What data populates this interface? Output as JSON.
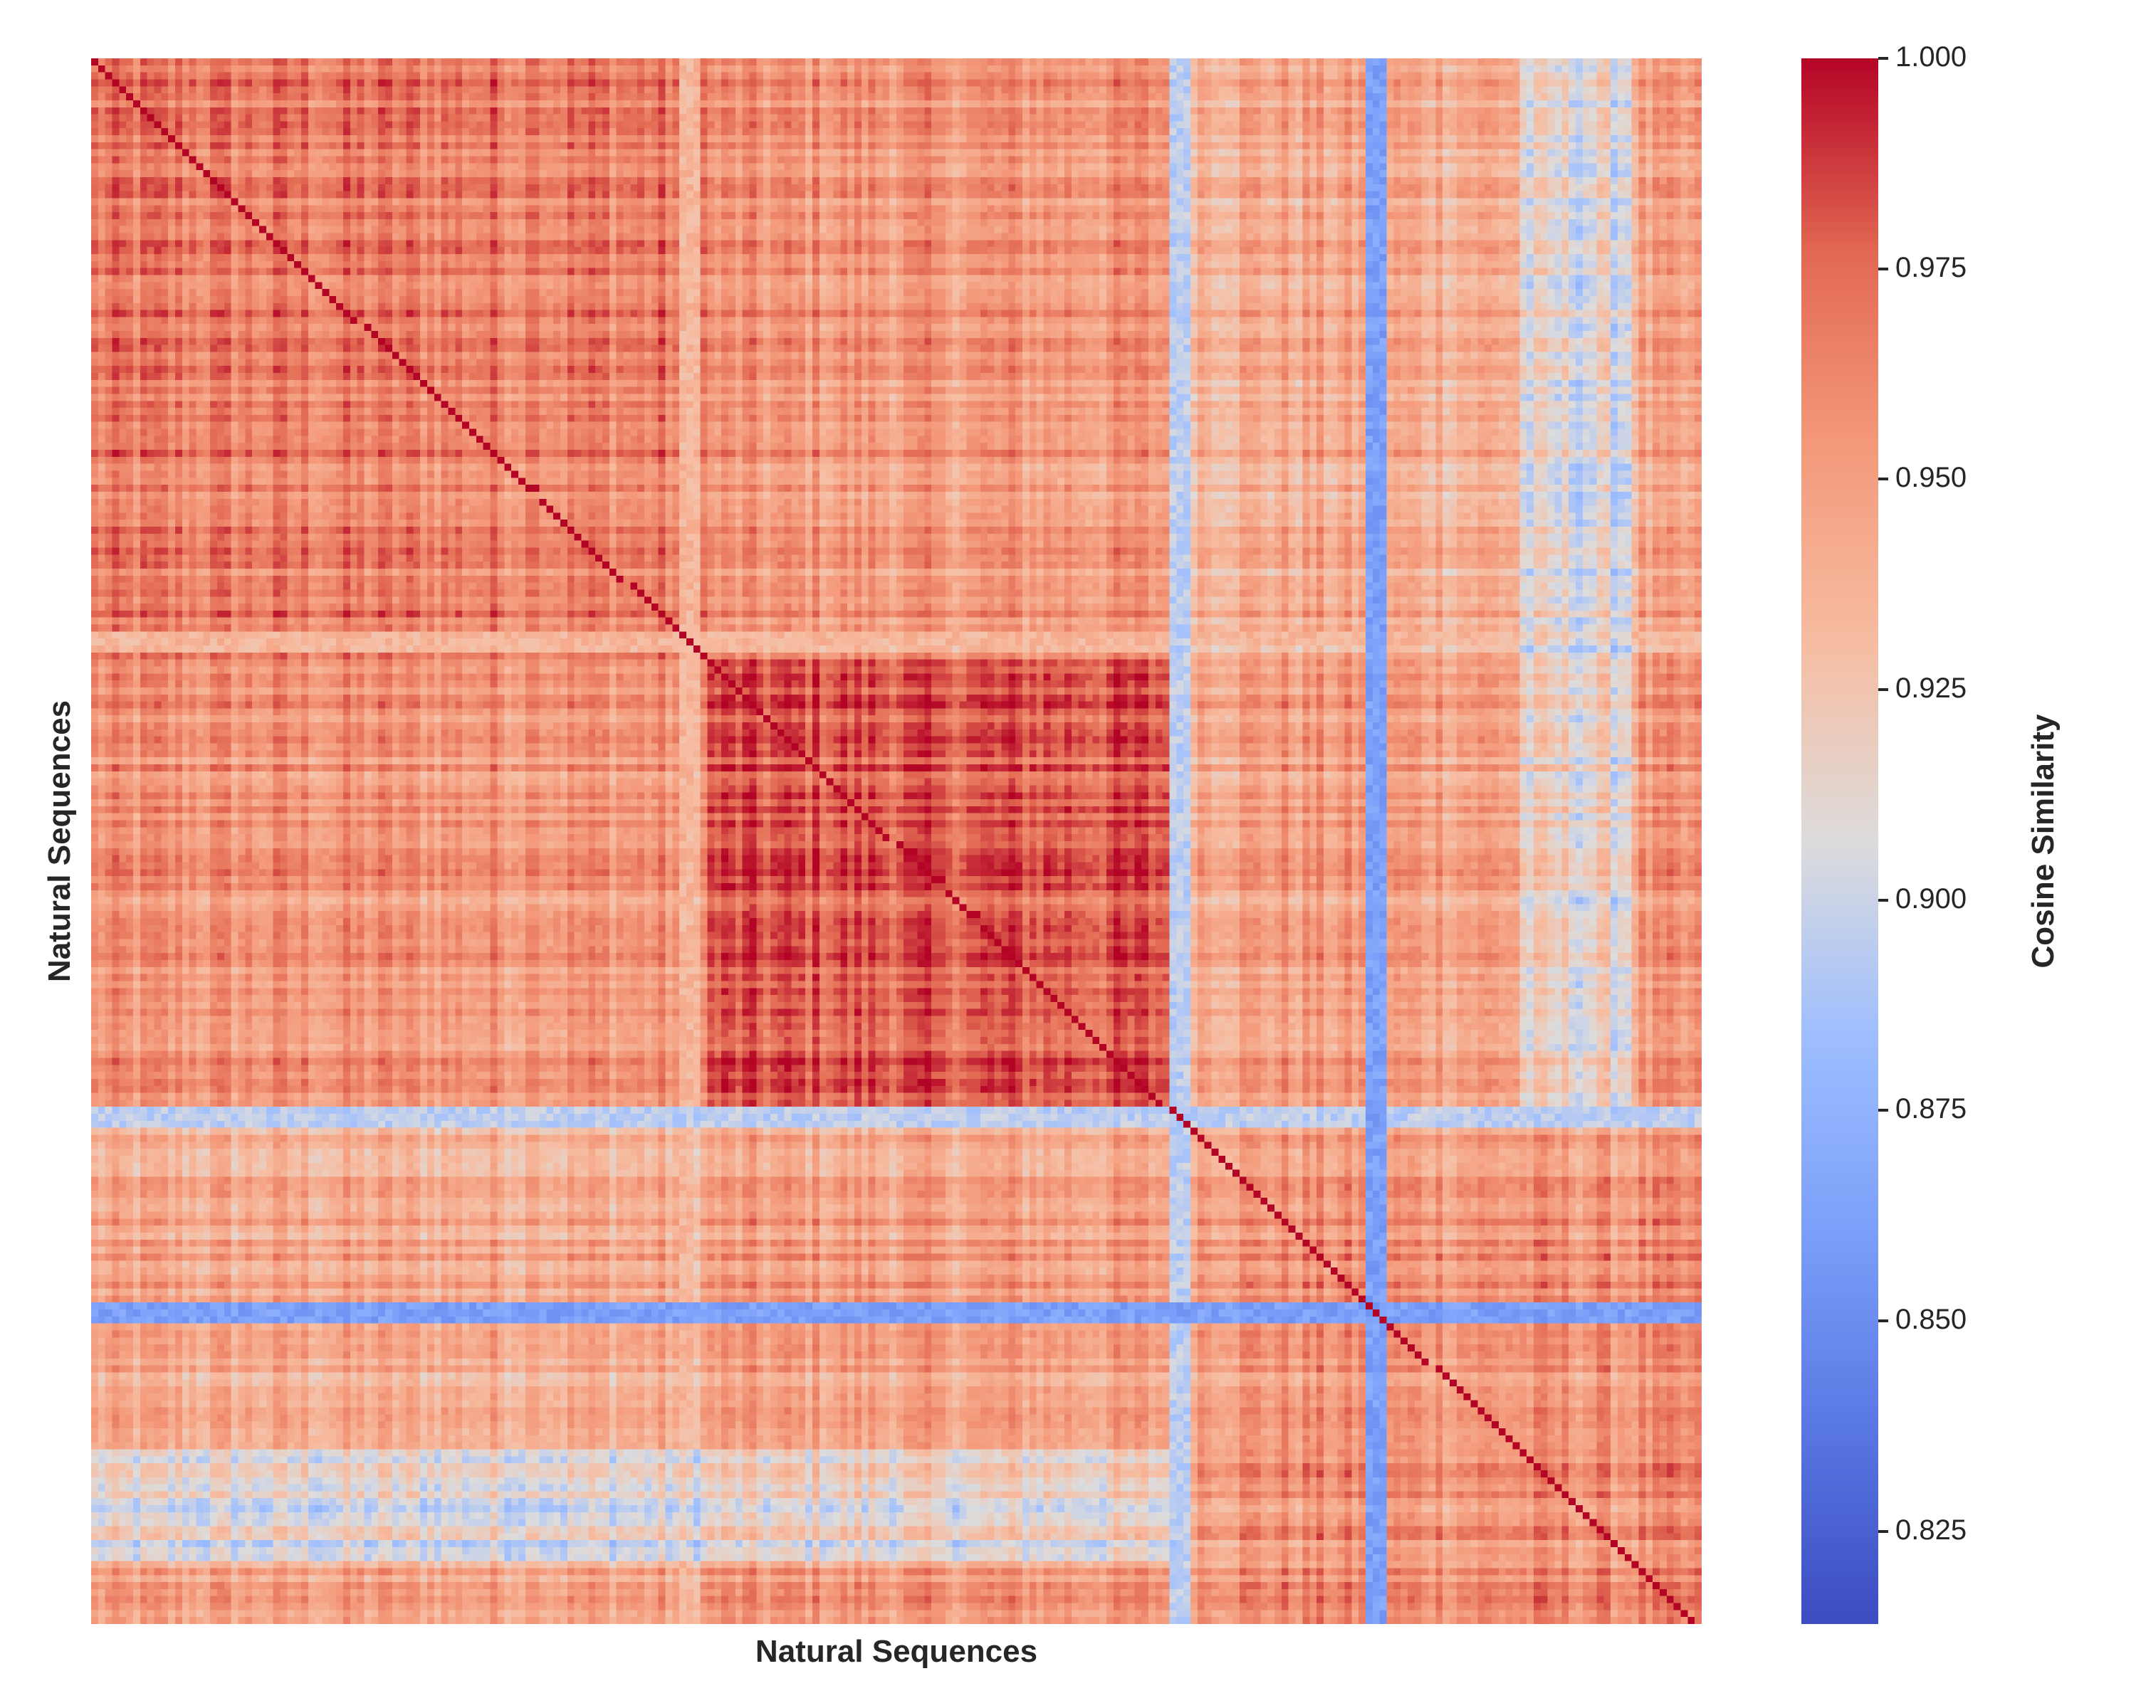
{
  "chart_data": {
    "type": "heatmap",
    "title": "",
    "xlabel": "Natural Sequences",
    "ylabel": "Natural Sequences",
    "colorbar": {
      "label": "Cosine Similarity",
      "colormap": "coolwarm",
      "range": [
        0.814,
        1.0
      ],
      "ticks": [
        "0.825",
        "0.850",
        "0.875",
        "0.900",
        "0.925",
        "0.950",
        "0.975",
        "1.000"
      ]
    },
    "x_tick_labels_visible": false,
    "y_tick_labels_visible": false,
    "matrix_size_approx": 230,
    "symmetric": true,
    "diagonal_value": 1.0,
    "clusters": [
      {
        "range_fraction": [
          0.0,
          0.38
        ],
        "mean_similarity": 0.965
      },
      {
        "range_fraction": [
          0.38,
          0.67
        ],
        "mean_similarity": 0.978
      },
      {
        "range_fraction": [
          0.67,
          1.0
        ],
        "mean_similarity": 0.955
      }
    ],
    "outlier_rows": [
      {
        "position_fraction": 0.37,
        "mean_similarity": 0.935
      },
      {
        "position_fraction": 0.674,
        "mean_similarity": 0.895
      },
      {
        "position_fraction": 0.794,
        "mean_similarity": 0.862
      }
    ]
  }
}
